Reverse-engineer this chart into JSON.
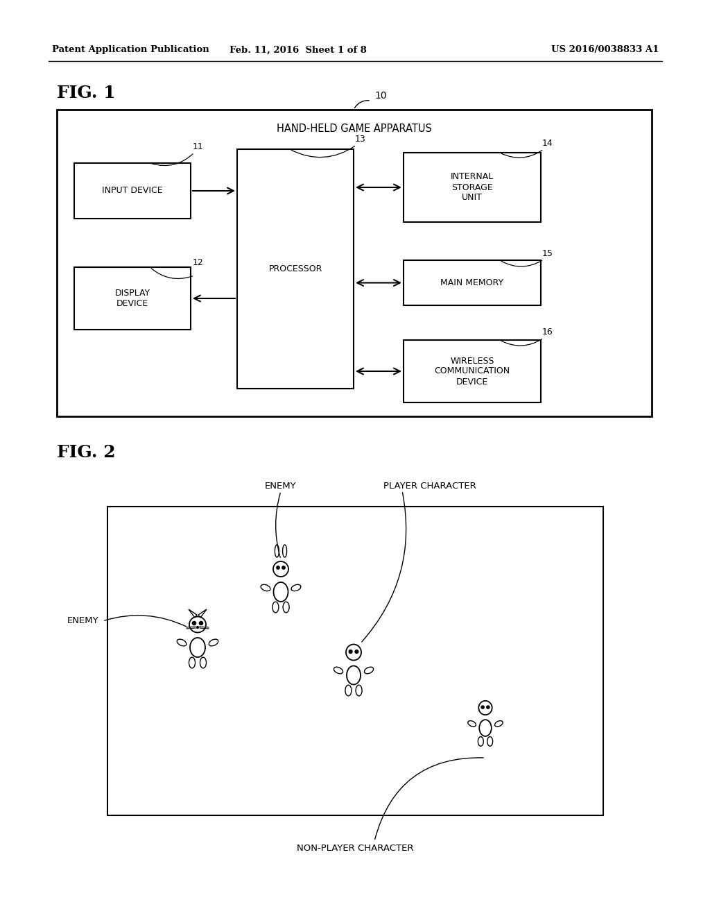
{
  "bg_color": "#ffffff",
  "header_left": "Patent Application Publication",
  "header_mid": "Feb. 11, 2016  Sheet 1 of 8",
  "header_right": "US 2016/0038833 A1",
  "fig1_label": "FIG. 1",
  "fig2_label": "FIG. 2",
  "outer_box_label": "HAND-HELD GAME APPARATUS",
  "outer_box_ref": "10",
  "fig2_scene_label": "NON-PLAYER CHARACTER",
  "fig2_enemy1_label": "ENEMY",
  "fig2_enemy2_label": "ENEMY",
  "fig2_player_label": "PLAYER CHARACTER"
}
